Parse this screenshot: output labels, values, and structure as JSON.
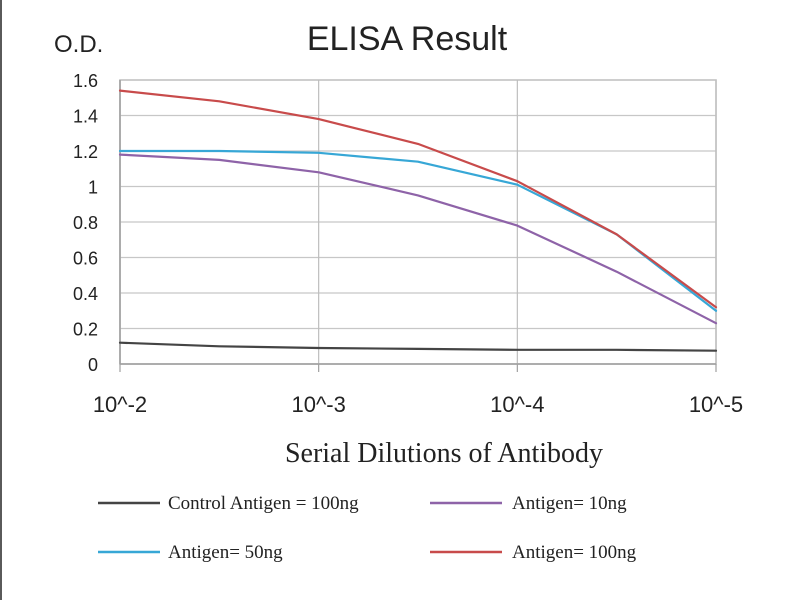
{
  "chart_data": {
    "type": "line",
    "title": "ELISA Result",
    "ylabel": "O.D.",
    "xlabel": "Serial Dilutions  of Antibody",
    "categories": [
      "10^-2",
      "10^-3",
      "10^-4",
      "10^-5"
    ],
    "yticks": [
      "0",
      "0.2",
      "0.4",
      "0.6",
      "0.8",
      "1",
      "1.2",
      "1.4",
      "1.6"
    ],
    "ylim": [
      0,
      1.6
    ],
    "grid": true,
    "legend_position": "bottom",
    "series": [
      {
        "name": "Control Antigen = 100ng",
        "color": "#444444",
        "x": [
          0,
          0.5,
          1,
          1.5,
          2,
          2.5,
          3
        ],
        "values": [
          0.12,
          0.1,
          0.09,
          0.085,
          0.08,
          0.08,
          0.075
        ]
      },
      {
        "name": "Antigen= 10ng",
        "color": "#8e63a8",
        "x": [
          0,
          0.5,
          1,
          1.5,
          2,
          2.5,
          3
        ],
        "values": [
          1.18,
          1.15,
          1.08,
          0.95,
          0.78,
          0.52,
          0.23
        ]
      },
      {
        "name": "Antigen= 50ng",
        "color": "#37a7d6",
        "x": [
          0,
          0.5,
          1,
          1.5,
          2,
          2.5,
          3
        ],
        "values": [
          1.2,
          1.2,
          1.19,
          1.14,
          1.01,
          0.73,
          0.3
        ]
      },
      {
        "name": "Antigen= 100ng",
        "color": "#c84b4b",
        "x": [
          0,
          0.5,
          1,
          1.5,
          2,
          2.5,
          3
        ],
        "values": [
          1.54,
          1.48,
          1.38,
          1.24,
          1.03,
          0.73,
          0.32
        ]
      }
    ]
  }
}
